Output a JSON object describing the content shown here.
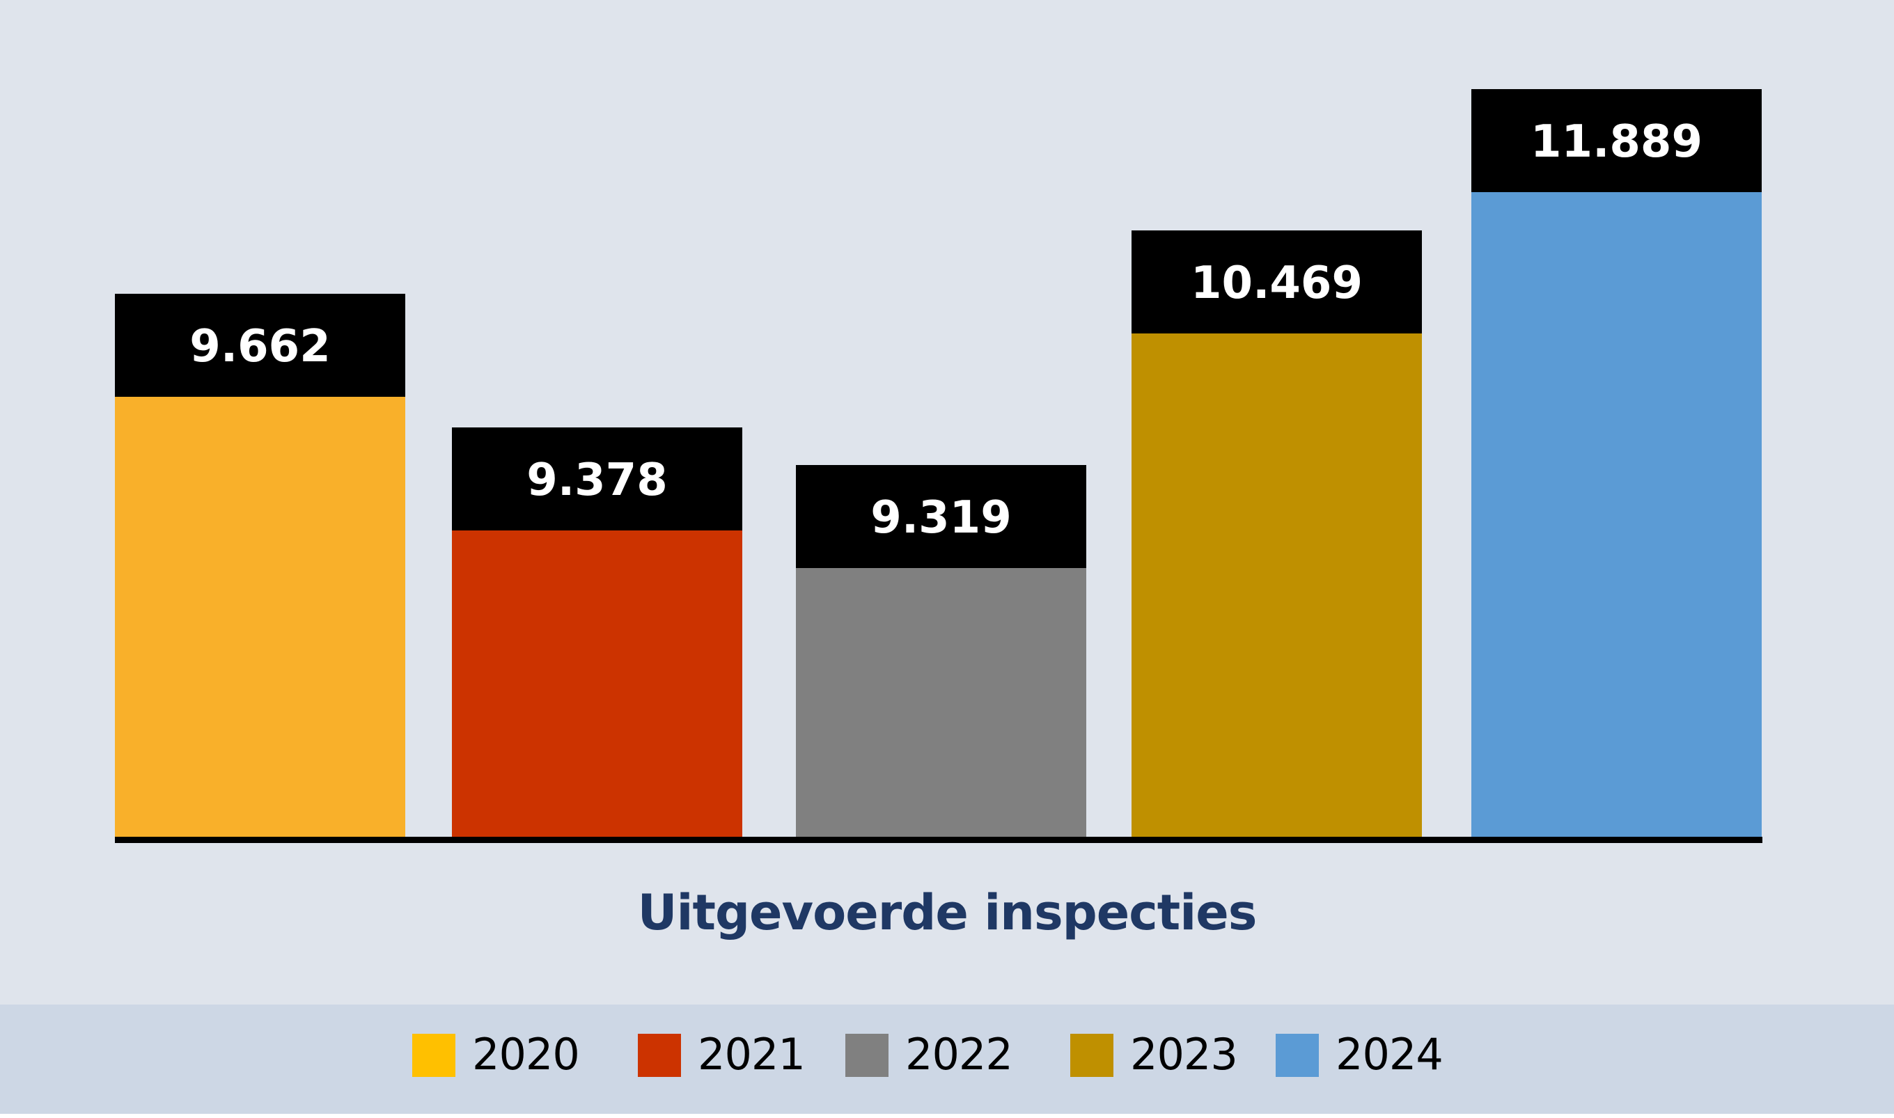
{
  "chart_data": {
    "type": "bar",
    "title": "Uitgevoerde inspecties",
    "xlabel": "",
    "ylabel": "",
    "categories": [
      "2020",
      "2021",
      "2022",
      "2023",
      "2024"
    ],
    "values": [
      9662,
      9378,
      9319,
      10469,
      11889
    ],
    "data_labels": [
      "9.662",
      "9.378",
      "9.319",
      "10.469",
      "11.889"
    ],
    "colors": [
      "#f9b02a",
      "#cc3300",
      "#808080",
      "#bf9000",
      "#5b9bd5"
    ],
    "label_box_color": "#000000",
    "legend": {
      "placement": "bottom",
      "entries": [
        {
          "label": "2020",
          "color": "#ffc000"
        },
        {
          "label": "2021",
          "color": "#cc3300"
        },
        {
          "label": "2022",
          "color": "#808080"
        },
        {
          "label": "2023",
          "color": "#bf9000"
        },
        {
          "label": "2024",
          "color": "#5b9bd5"
        }
      ]
    },
    "grid": false
  }
}
